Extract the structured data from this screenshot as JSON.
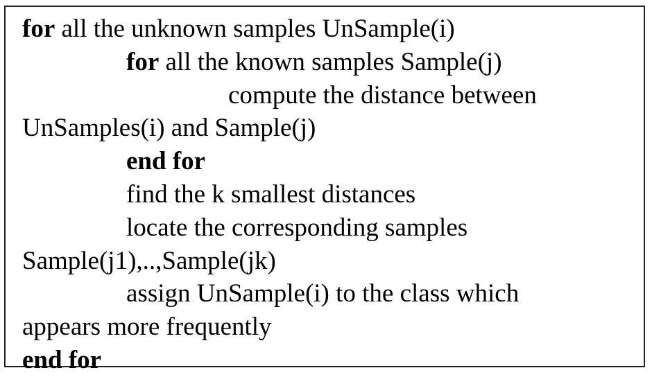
{
  "algorithm": {
    "lines": [
      {
        "keyword": "for",
        "text": " all the unknown samples UnSample(i)"
      },
      {
        "keyword": "for",
        "text": " all the known samples Sample(j)"
      },
      {
        "keyword": "",
        "text": "compute the distance between"
      },
      {
        "keyword": "",
        "text": "UnSamples(i) and Sample(j)"
      },
      {
        "keyword": "end for",
        "text": ""
      },
      {
        "keyword": "",
        "text": "find the k smallest distances"
      },
      {
        "keyword": "",
        "text": "locate the corresponding samples"
      },
      {
        "keyword": "",
        "text": "Sample(j1),..,Sample(jk)"
      },
      {
        "keyword": "",
        "text": "assign UnSample(i) to the class which"
      },
      {
        "keyword": "",
        "text": "appears more frequently"
      },
      {
        "keyword": "end for",
        "text": ""
      }
    ]
  }
}
